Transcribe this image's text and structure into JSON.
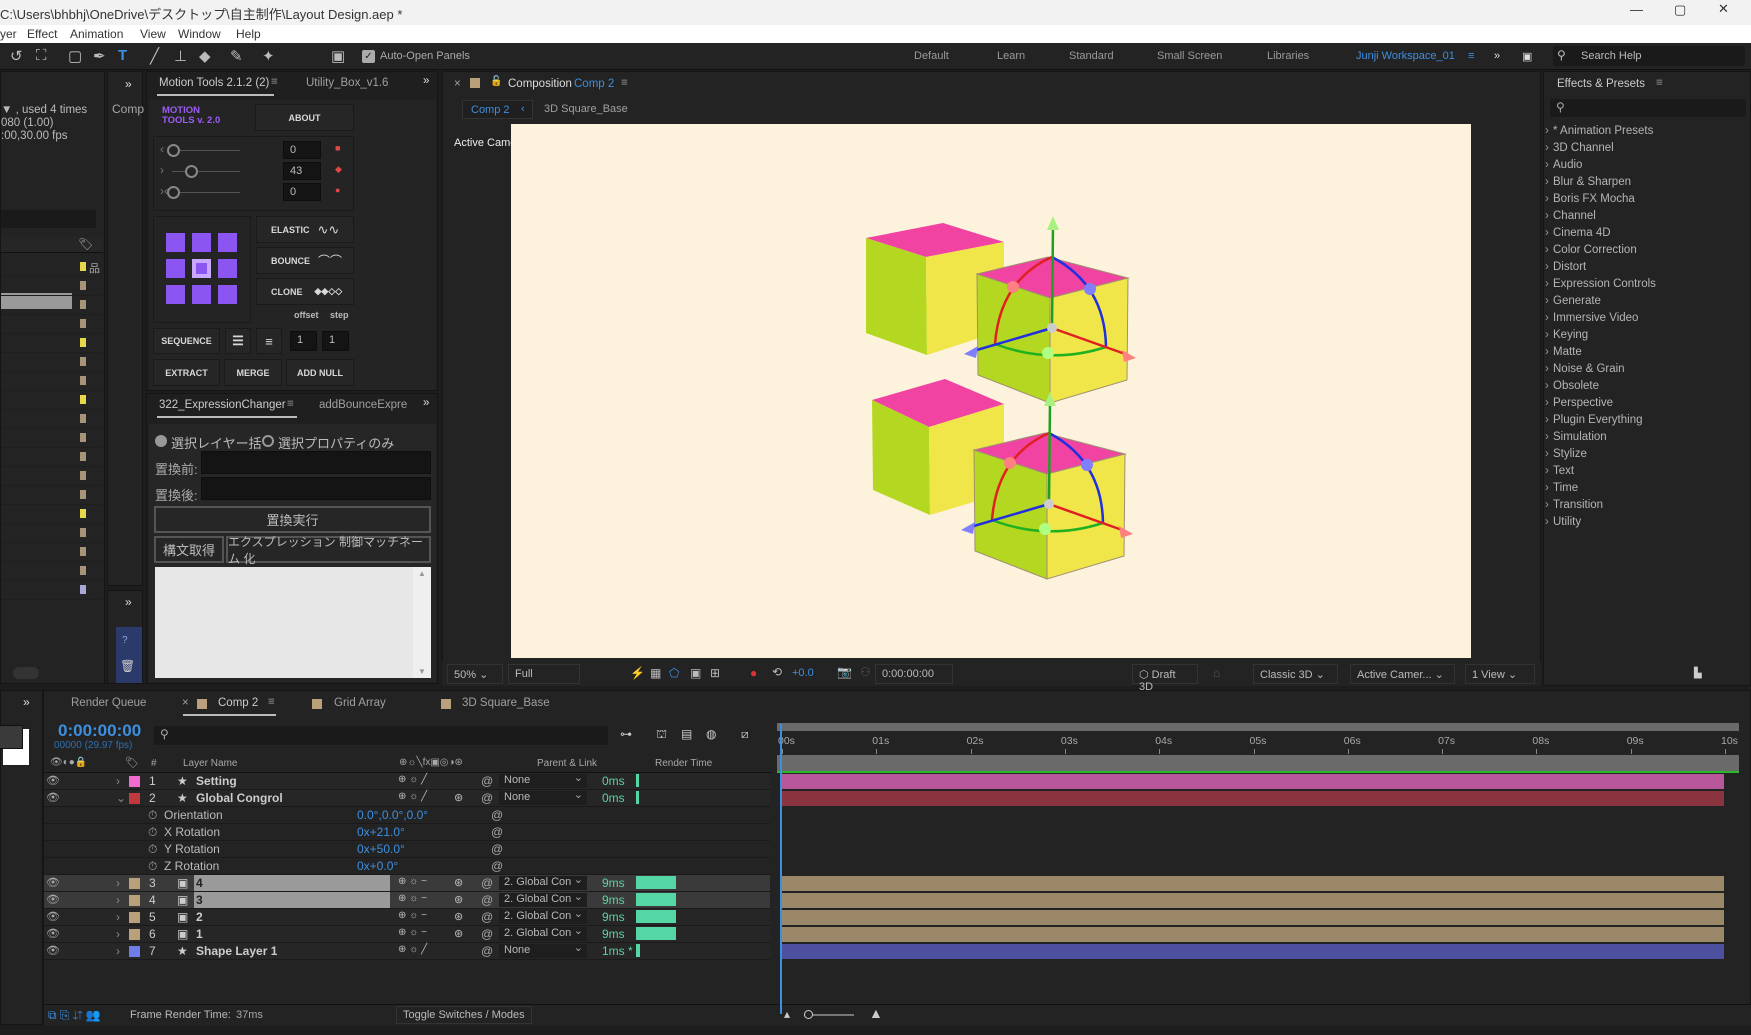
{
  "window": {
    "title": "C:\\Users\\bhbhj\\OneDrive\\デスクトップ\\自主制作\\Layout Design.aep *"
  },
  "menu": [
    "yer",
    "Effect",
    "Animation",
    "View",
    "Window",
    "Help"
  ],
  "toolbar": {
    "auto_open_panels": "Auto-Open Panels",
    "auto_open_checked": true
  },
  "workspaces": {
    "items": [
      "Default",
      "Learn",
      "Standard",
      "Small Screen",
      "Libraries"
    ],
    "active": "Junji Workspace_01",
    "search_help": "Search Help"
  },
  "project": {
    "info": [
      "▼ , used 4 times",
      "080 (1.00)",
      ":00,30.00 fps"
    ],
    "side_tab": "Comp",
    "label_colors": [
      "#e6d84a",
      "#a89478",
      "#a89478",
      "#a89478",
      "#e6d84a",
      "#a89478",
      "#a89478",
      "#e6d84a",
      "#a89478",
      "#a89478",
      "#a89478",
      "#a89478",
      "#a89478",
      "#e6d84a",
      "#a89478",
      "#a89478",
      "#a89478",
      "#a9a7d6"
    ]
  },
  "motion_tools": {
    "tabs": [
      "Motion Tools 2.1.2 (2)",
      "Utility_Box_v1.6"
    ],
    "logo": "MOTION TOOLS v. 2.0",
    "about": "ABOUT",
    "sliders": [
      {
        "value": "0"
      },
      {
        "value": "43"
      },
      {
        "value": "0"
      }
    ],
    "elastic": "ELASTIC",
    "bounce": "BOUNCE",
    "clone": "CLONE",
    "offset_label": "offset",
    "step_label": "step",
    "sequence": "SEQUENCE",
    "offset": "1",
    "step": "1",
    "extract": "EXTRACT",
    "merge": "MERGE",
    "add_null": "ADD NULL"
  },
  "expression_changer": {
    "tabs": [
      "322_ExpressionChanger",
      "addBounceExpre"
    ],
    "radio1": "選択レイヤー括",
    "radio2": "選択プロパティのみ",
    "before_label": "置換前:",
    "after_label": "置換後:",
    "before_value": "",
    "after_value": "",
    "execute": "置換実行",
    "get_syntax": "構文取得",
    "match_name": "エクスプレッション 制御マッチネーム 化"
  },
  "composition": {
    "panel_label": "Composition",
    "comp_name": "Comp 2",
    "subtabs": [
      "Comp 2",
      "3D Square_Base"
    ],
    "camera_label": "Active Camera (Default)",
    "bg_color": "#fdf3dc",
    "zoom": "50%",
    "resolution": "Full",
    "exposure": "+0.0",
    "timecode": "0:00:00:00",
    "draft3d": "Draft 3D",
    "renderer": "Classic 3D",
    "camera": "Active Camer...",
    "views": "1 View"
  },
  "effects": {
    "title": "Effects & Presets",
    "items": [
      "* Animation Presets",
      "3D Channel",
      "Audio",
      "Blur & Sharpen",
      "Boris FX Mocha",
      "Channel",
      "Cinema 4D",
      "Color Correction",
      "Distort",
      "Expression Controls",
      "Generate",
      "Immersive Video",
      "Keying",
      "Matte",
      "Noise & Grain",
      "Obsolete",
      "Perspective",
      "Plugin Everything",
      "Simulation",
      "Stylize",
      "Text",
      "Time",
      "Transition",
      "Utility"
    ]
  },
  "timeline": {
    "tabs": [
      "Render Queue",
      "Comp 2",
      "Grid Array",
      "3D Square_Base"
    ],
    "timecode": "0:00:00:00",
    "frames": "00000 (29.97 fps)",
    "headers": {
      "layer_name": "Layer Name",
      "parent": "Parent & Link",
      "render_time": "Render Time",
      "num": "#"
    },
    "ruler": [
      "00s",
      "01s",
      "02s",
      "03s",
      "04s",
      "05s",
      "06s",
      "07s",
      "08s",
      "09s",
      "10s"
    ],
    "layers": [
      {
        "num": "1",
        "name": "Setting",
        "label": "#f06ad0",
        "parent": "None",
        "time": "0ms",
        "type": "star",
        "bar": "#b8589a",
        "render_frac": 0
      },
      {
        "num": "2",
        "name": "Global Congrol",
        "label": "#c0393f",
        "parent": "None",
        "time": "0ms",
        "type": "star",
        "bar": "#8a3440",
        "render_frac": 0,
        "expanded": true
      },
      {
        "num": "3",
        "name": "4",
        "label": "#b8a07a",
        "parent": "2. Global Con",
        "time": "9ms",
        "type": "comp",
        "bar": "#9a8868",
        "render_frac": 1,
        "selected": true
      },
      {
        "num": "4",
        "name": "3",
        "label": "#b8a07a",
        "parent": "2. Global Con",
        "time": "9ms",
        "type": "comp",
        "bar": "#9a8868",
        "render_frac": 1,
        "selected": true
      },
      {
        "num": "5",
        "name": "2",
        "label": "#b8a07a",
        "parent": "2. Global Con",
        "time": "9ms",
        "type": "comp",
        "bar": "#9a8868",
        "render_frac": 1
      },
      {
        "num": "6",
        "name": "1",
        "label": "#b8a07a",
        "parent": "2. Global Con",
        "time": "9ms",
        "type": "comp",
        "bar": "#9a8868",
        "render_frac": 1
      },
      {
        "num": "7",
        "name": "Shape Layer 1",
        "label": "#6f7de8",
        "parent": "None",
        "time": "1ms *",
        "type": "star",
        "bar": "#4d509e",
        "render_frac": 0.1
      }
    ],
    "properties": [
      {
        "name": "Orientation",
        "value": "0.0°,0.0°,0.0°"
      },
      {
        "name": "X Rotation",
        "value": "0x+21.0°"
      },
      {
        "name": "Y Rotation",
        "value": "0x+50.0°"
      },
      {
        "name": "Z Rotation",
        "value": "0x+0.0°"
      }
    ],
    "frame_render_label": "Frame Render Time:",
    "frame_render_value": "37ms",
    "toggle": "Toggle Switches / Modes"
  }
}
